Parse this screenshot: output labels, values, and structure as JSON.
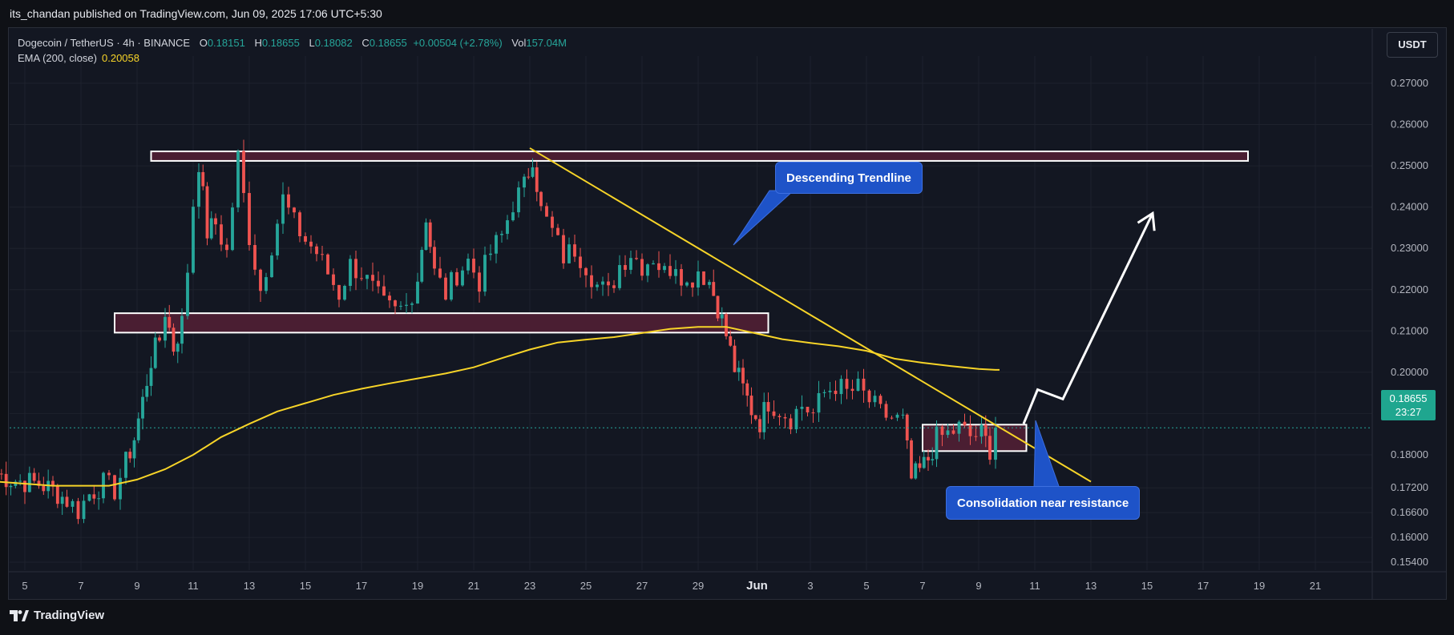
{
  "header": {
    "published_by": "its_chandan published on TradingView.com, Jun 09, 2025 17:06 UTC+5:30"
  },
  "legend": {
    "symbol": "Dogecoin / TetherUS · 4h · BINANCE",
    "open_label": "O",
    "open": "0.18151",
    "high_label": "H",
    "high": "0.18655",
    "low_label": "L",
    "low": "0.18082",
    "close_label": "C",
    "close": "0.18655",
    "change": "+0.00504 (+2.78%)",
    "vol_label": "Vol",
    "vol": "157.04M",
    "ema_label": "EMA (200, close)",
    "ema_value": "0.20058"
  },
  "currency_button": "USDT",
  "price_tag": {
    "price": "0.18655",
    "countdown": "23:27"
  },
  "callouts": {
    "trendline": "Descending Trendline",
    "consolidation": "Consolidation near resistance"
  },
  "brand": "TradingView",
  "colors": {
    "up": "#26a69a",
    "down": "#ef5350",
    "ema": "#f7d428",
    "trendline": "#f7d428",
    "zone_fill": "#4a1e32",
    "callout": "#1e53c8"
  },
  "chart_data": {
    "type": "candlestick",
    "title": "Dogecoin / TetherUS · 4h · BINANCE",
    "y_ticks": [
      "0.27000",
      "0.26000",
      "0.25000",
      "0.24000",
      "0.23000",
      "0.22000",
      "0.21000",
      "0.20000",
      "0.19000",
      "0.18000",
      "0.17200",
      "0.16600",
      "0.16000",
      "0.15400"
    ],
    "x_ticks": [
      "5",
      "7",
      "9",
      "11",
      "13",
      "15",
      "17",
      "19",
      "21",
      "23",
      "25",
      "27",
      "29",
      "Jun",
      "3",
      "5",
      "7",
      "9",
      "11",
      "13",
      "15",
      "17",
      "19",
      "21"
    ],
    "ylim": [
      0.151,
      0.279
    ],
    "close_series": [
      {
        "day": 4.0,
        "close": 0.1755
      },
      {
        "day": 4.5,
        "close": 0.174
      },
      {
        "day": 5.0,
        "close": 0.1735
      },
      {
        "day": 5.5,
        "close": 0.173
      },
      {
        "day": 6.0,
        "close": 0.1715
      },
      {
        "day": 6.5,
        "close": 0.169
      },
      {
        "day": 6.9,
        "close": 0.1665
      },
      {
        "day": 7.3,
        "close": 0.1705
      },
      {
        "day": 7.8,
        "close": 0.173
      },
      {
        "day": 8.2,
        "close": 0.1715
      },
      {
        "day": 8.6,
        "close": 0.178
      },
      {
        "day": 8.9,
        "close": 0.184
      },
      {
        "day": 9.2,
        "close": 0.193
      },
      {
        "day": 9.5,
        "close": 0.203
      },
      {
        "day": 9.8,
        "close": 0.208
      },
      {
        "day": 10.0,
        "close": 0.215
      },
      {
        "day": 10.3,
        "close": 0.206
      },
      {
        "day": 10.6,
        "close": 0.212
      },
      {
        "day": 10.8,
        "close": 0.225
      },
      {
        "day": 11.0,
        "close": 0.241
      },
      {
        "day": 11.2,
        "close": 0.251
      },
      {
        "day": 11.5,
        "close": 0.234
      },
      {
        "day": 11.8,
        "close": 0.236
      },
      {
        "day": 12.2,
        "close": 0.229
      },
      {
        "day": 12.6,
        "close": 0.252
      },
      {
        "day": 13.0,
        "close": 0.233
      },
      {
        "day": 13.4,
        "close": 0.22
      },
      {
        "day": 13.8,
        "close": 0.231
      },
      {
        "day": 14.2,
        "close": 0.242
      },
      {
        "day": 14.6,
        "close": 0.236
      },
      {
        "day": 15.0,
        "close": 0.232
      },
      {
        "day": 15.4,
        "close": 0.229
      },
      {
        "day": 15.8,
        "close": 0.224
      },
      {
        "day": 16.2,
        "close": 0.219
      },
      {
        "day": 16.6,
        "close": 0.226
      },
      {
        "day": 17.0,
        "close": 0.224
      },
      {
        "day": 17.4,
        "close": 0.22
      },
      {
        "day": 17.8,
        "close": 0.216
      },
      {
        "day": 18.2,
        "close": 0.2145
      },
      {
        "day": 18.6,
        "close": 0.216
      },
      {
        "day": 19.0,
        "close": 0.223
      },
      {
        "day": 19.3,
        "close": 0.238
      },
      {
        "day": 19.6,
        "close": 0.224
      },
      {
        "day": 20.0,
        "close": 0.219
      },
      {
        "day": 20.4,
        "close": 0.224
      },
      {
        "day": 20.8,
        "close": 0.227
      },
      {
        "day": 21.2,
        "close": 0.222
      },
      {
        "day": 21.6,
        "close": 0.229
      },
      {
        "day": 22.0,
        "close": 0.233
      },
      {
        "day": 22.4,
        "close": 0.241
      },
      {
        "day": 22.8,
        "close": 0.245
      },
      {
        "day": 23.1,
        "close": 0.2525
      },
      {
        "day": 23.4,
        "close": 0.239
      },
      {
        "day": 23.8,
        "close": 0.234
      },
      {
        "day": 24.2,
        "close": 0.228
      },
      {
        "day": 24.6,
        "close": 0.23
      },
      {
        "day": 25.0,
        "close": 0.226
      },
      {
        "day": 25.4,
        "close": 0.221
      },
      {
        "day": 25.8,
        "close": 0.219
      },
      {
        "day": 26.2,
        "close": 0.226
      },
      {
        "day": 26.6,
        "close": 0.229
      },
      {
        "day": 27.0,
        "close": 0.226
      },
      {
        "day": 27.4,
        "close": 0.228
      },
      {
        "day": 27.8,
        "close": 0.224
      },
      {
        "day": 28.2,
        "close": 0.227
      },
      {
        "day": 28.6,
        "close": 0.221
      },
      {
        "day": 29.0,
        "close": 0.225
      },
      {
        "day": 29.4,
        "close": 0.222
      },
      {
        "day": 29.7,
        "close": 0.216
      },
      {
        "day": 30.0,
        "close": 0.209
      },
      {
        "day": 30.3,
        "close": 0.201
      },
      {
        "day": 30.6,
        "close": 0.196
      },
      {
        "day": 30.9,
        "close": 0.191
      },
      {
        "day": 31.2,
        "close": 0.188
      },
      {
        "day": 31.5,
        "close": 0.193
      },
      {
        "day": 31.9,
        "close": 0.191
      },
      {
        "day": 32.3,
        "close": 0.189
      },
      {
        "day": 32.7,
        "close": 0.192
      },
      {
        "day": 33.1,
        "close": 0.19
      },
      {
        "day": 33.5,
        "close": 0.195
      },
      {
        "day": 33.9,
        "close": 0.197
      },
      {
        "day": 34.3,
        "close": 0.195
      },
      {
        "day": 34.7,
        "close": 0.196
      },
      {
        "day": 35.1,
        "close": 0.193
      },
      {
        "day": 35.5,
        "close": 0.19
      },
      {
        "day": 35.9,
        "close": 0.189
      },
      {
        "day": 36.3,
        "close": 0.188
      },
      {
        "day": 36.6,
        "close": 0.174
      },
      {
        "day": 36.9,
        "close": 0.176
      },
      {
        "day": 37.2,
        "close": 0.179
      },
      {
        "day": 37.5,
        "close": 0.184
      },
      {
        "day": 37.9,
        "close": 0.185
      },
      {
        "day": 38.3,
        "close": 0.1865
      },
      {
        "day": 38.7,
        "close": 0.1845
      },
      {
        "day": 39.1,
        "close": 0.185
      },
      {
        "day": 39.4,
        "close": 0.1815
      },
      {
        "day": 39.6,
        "close": 0.18655
      }
    ],
    "ema_200": [
      {
        "day": 4.0,
        "value": 0.1735
      },
      {
        "day": 6.0,
        "value": 0.1725
      },
      {
        "day": 8.0,
        "value": 0.1725
      },
      {
        "day": 9.0,
        "value": 0.174
      },
      {
        "day": 10.0,
        "value": 0.1765
      },
      {
        "day": 11.0,
        "value": 0.18
      },
      {
        "day": 12.0,
        "value": 0.1843
      },
      {
        "day": 13.0,
        "value": 0.1875
      },
      {
        "day": 14.0,
        "value": 0.1905
      },
      {
        "day": 15.0,
        "value": 0.1925
      },
      {
        "day": 16.0,
        "value": 0.1945
      },
      {
        "day": 17.0,
        "value": 0.196
      },
      {
        "day": 18.0,
        "value": 0.1973
      },
      {
        "day": 19.0,
        "value": 0.1985
      },
      {
        "day": 20.0,
        "value": 0.1997
      },
      {
        "day": 21.0,
        "value": 0.2012
      },
      {
        "day": 22.0,
        "value": 0.2034
      },
      {
        "day": 23.0,
        "value": 0.2055
      },
      {
        "day": 24.0,
        "value": 0.2072
      },
      {
        "day": 25.0,
        "value": 0.2079
      },
      {
        "day": 26.0,
        "value": 0.2085
      },
      {
        "day": 27.0,
        "value": 0.2095
      },
      {
        "day": 28.0,
        "value": 0.2105
      },
      {
        "day": 29.0,
        "value": 0.211
      },
      {
        "day": 30.0,
        "value": 0.211
      },
      {
        "day": 31.0,
        "value": 0.2095
      },
      {
        "day": 32.0,
        "value": 0.208
      },
      {
        "day": 33.0,
        "value": 0.2071
      },
      {
        "day": 34.0,
        "value": 0.2063
      },
      {
        "day": 35.0,
        "value": 0.2052
      },
      {
        "day": 36.0,
        "value": 0.2033
      },
      {
        "day": 37.0,
        "value": 0.2023
      },
      {
        "day": 38.0,
        "value": 0.2015
      },
      {
        "day": 39.0,
        "value": 0.2008
      },
      {
        "day": 39.6,
        "value": 0.20058
      }
    ],
    "annotations": {
      "resistance_zone_upper": {
        "day_start": 9.5,
        "day_end": 48.6,
        "price_low": 0.2512,
        "price_high": 0.2535
      },
      "support_zone": {
        "day_start": 8.2,
        "day_end": 31.5,
        "price_low": 0.2096,
        "price_high": 0.2143
      },
      "consolidation_zone": {
        "day_start": 37.0,
        "day_end": 40.7,
        "price_low": 0.1809,
        "price_high": 0.1873
      },
      "descending_trendline": [
        {
          "day": 23.0,
          "price": 0.2543
        },
        {
          "day": 43.0,
          "price": 0.1735
        }
      ],
      "projection_path": [
        {
          "day": 40.6,
          "price": 0.1875
        },
        {
          "day": 41.1,
          "price": 0.1958
        },
        {
          "day": 42.0,
          "price": 0.1935
        },
        {
          "day": 45.2,
          "price": 0.2385
        }
      ]
    }
  }
}
